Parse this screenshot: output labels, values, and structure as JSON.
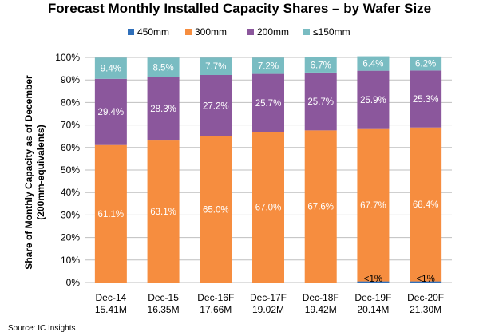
{
  "colors": {
    "s450": "#2f6fba",
    "s300": "#f68d3f",
    "s200": "#8b579c",
    "s150": "#79bcc2",
    "grid": "#bfbfbf"
  },
  "chart_data": {
    "type": "bar",
    "stacked": true,
    "title": "Forecast Monthly Installed Capacity Shares – by Wafer Size",
    "ylabel_line1": "Share of Monthly Capacity as of December",
    "ylabel_line2": "(200mm-equivalents)",
    "categories": [
      "Dec-14",
      "Dec-15",
      "Dec-16F",
      "Dec-17F",
      "Dec-18F",
      "Dec-19F",
      "Dec-20F"
    ],
    "category_sublabels": [
      "15.41M",
      "16.35M",
      "17.66M",
      "19.02M",
      "19.42M",
      "20.14M",
      "21.30M"
    ],
    "ylim": [
      0,
      100
    ],
    "yticks": [
      "0%",
      "10%",
      "20%",
      "30%",
      "40%",
      "50%",
      "60%",
      "70%",
      "80%",
      "90%",
      "100%"
    ],
    "grid": true,
    "legend_position": "top",
    "series": [
      {
        "name": "450mm",
        "values": [
          0,
          0,
          0,
          0,
          0,
          0.5,
          0.5
        ],
        "labels": [
          "",
          "",
          "",
          "",
          "",
          "<1%",
          "<1%"
        ]
      },
      {
        "name": "300mm",
        "values": [
          61.1,
          63.1,
          65.0,
          67.0,
          67.6,
          67.7,
          68.4
        ],
        "labels": [
          "61.1%",
          "63.1%",
          "65.0%",
          "67.0%",
          "67.6%",
          "67.7%",
          "68.4%"
        ]
      },
      {
        "name": "200mm",
        "values": [
          29.4,
          28.3,
          27.2,
          25.7,
          25.7,
          25.9,
          25.3
        ],
        "labels": [
          "29.4%",
          "28.3%",
          "27.2%",
          "25.7%",
          "25.7%",
          "25.9%",
          "25.3%"
        ]
      },
      {
        "name": "≤150mm",
        "values": [
          9.4,
          8.5,
          7.7,
          7.2,
          6.7,
          6.4,
          6.2
        ],
        "labels": [
          "9.4%",
          "8.5%",
          "7.7%",
          "7.2%",
          "6.7%",
          "6.4%",
          "6.2%"
        ]
      }
    ],
    "source": "Source:  IC Insights"
  }
}
